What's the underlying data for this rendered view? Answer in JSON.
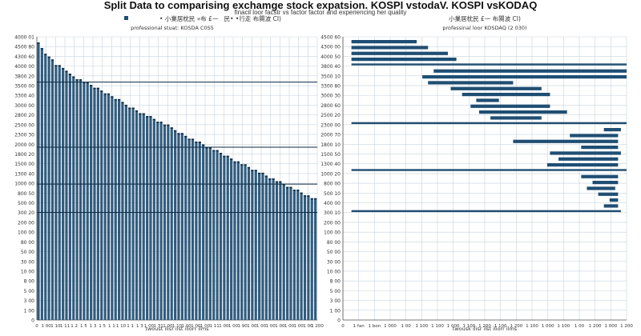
{
  "title": "Split Data to comparising exchamge stock expatsion. KOSPI vstodaV. KOSPI vsKODAQ",
  "subtitle": "finacil loor facstr vs factor factor and experiencing her quality",
  "chart_data": [
    {
      "type": "bar",
      "panel": "left",
      "legend_label": "• 小業居枕民 »布 £一   民• •行走 布闋波 CI)",
      "caption": "professional stuat: KOSDA C0S5",
      "xlabel": "twoust ilisr ilst iliorr ilms",
      "ylabel": "",
      "x_ticks": [
        "0",
        "1 00",
        "1 10",
        "1 11",
        "1 2",
        "1 5",
        "1 3",
        "1 5",
        "1 1",
        "1 10",
        "1 1",
        "1 3",
        "1 00",
        "1 31",
        "1 00",
        "1 10",
        "1 00",
        "1 00",
        "1 00",
        "1 11",
        "1 00",
        "1 00",
        "1 90",
        "1 00",
        "1 00",
        "1 00",
        "1 00",
        "1 00",
        "1 00",
        "1 00",
        "1 200"
      ],
      "y_ticks": [
        "4000 01",
        "4500 80",
        "4300 60",
        "4000 00",
        "3800 20",
        "3500 00",
        "3300 40",
        "3000 00",
        "2800 20",
        "2500 00",
        "2300 30",
        "2000 00",
        "1800 20",
        "1500 00",
        "1300 40",
        "1000 00",
        "800 50",
        "500 00",
        "300 20",
        "200 00",
        "100 00",
        "80 00",
        "50 00",
        "30 00",
        "10 00",
        "8 00",
        "5 00",
        "3 00",
        "1 00",
        "0"
      ],
      "ylim": [
        0,
        100
      ],
      "reference_lines": [
        84,
        61,
        48,
        38
      ],
      "values": [
        98,
        96,
        94,
        93,
        92,
        90,
        90,
        89,
        88,
        87,
        86,
        85,
        85,
        84,
        84,
        83,
        82,
        82,
        81,
        80,
        80,
        79,
        78,
        78,
        77,
        76,
        75,
        75,
        74,
        73,
        73,
        72,
        72,
        71,
        70,
        70,
        69,
        69,
        68,
        67,
        66,
        66,
        65,
        64,
        64,
        63,
        63,
        62,
        61,
        61,
        60,
        60,
        59,
        58,
        58,
        57,
        56,
        56,
        55,
        55,
        54,
        53,
        53,
        52,
        52,
        51,
        50,
        50,
        49,
        49,
        48,
        47,
        47,
        46,
        46,
        45,
        44,
        44,
        43,
        43
      ]
    },
    {
      "type": "bar",
      "orientation": "horizontal",
      "panel": "right",
      "legend_label": "小業居枕民 £一 布闋波 CI)",
      "caption": "professinal loor KOSDAQ (2 030)",
      "xlabel": "twousk ilisr ilst iliorr ilms",
      "ylabel": "",
      "x_ticks": [
        "0",
        "1 fan",
        "1 bon",
        "1 000",
        "1 00",
        "1 100",
        "1 100",
        "1 000",
        "1 100",
        "1 200",
        "1 100",
        "1 200",
        "1 100",
        "1 000",
        "1 100",
        "1 00",
        "1 200",
        "1 000",
        "1 200"
      ],
      "y_ticks": [
        "4500 60",
        "4300 00",
        "4000 50",
        "3800 40",
        "3500 10",
        "3300 80",
        "3000 30",
        "2800 60",
        "2500 20",
        "2300 00",
        "2000 70",
        "1800 10",
        "1500 50",
        "1300 40",
        "1000 20",
        "800 00",
        "500 10",
        "400 00",
        "300 10",
        "200 00",
        "100 00",
        "80 00",
        "50 00",
        "30 00",
        "10 00",
        "8 00",
        "5 00",
        "3 00",
        "1 00",
        "0"
      ],
      "bars": [
        {
          "start": 3,
          "end": 26
        },
        {
          "start": 3,
          "end": 30
        },
        {
          "start": 3,
          "end": 37
        },
        {
          "start": 3,
          "end": 40
        },
        {
          "start": 3,
          "end": 100
        },
        {
          "start": 32,
          "end": 100
        },
        {
          "start": 28,
          "end": 100
        },
        {
          "start": 30,
          "end": 60
        },
        {
          "start": 38,
          "end": 70
        },
        {
          "start": 42,
          "end": 73
        },
        {
          "start": 47,
          "end": 55
        },
        {
          "start": 45,
          "end": 73
        },
        {
          "start": 48,
          "end": 79
        },
        {
          "start": 52,
          "end": 70
        },
        {
          "start": 3,
          "end": 100
        },
        {
          "start": 92,
          "end": 98
        },
        {
          "start": 80,
          "end": 97
        },
        {
          "start": 60,
          "end": 97
        },
        {
          "start": 84,
          "end": 97
        },
        {
          "start": 73,
          "end": 98
        },
        {
          "start": 76,
          "end": 97
        },
        {
          "start": 72,
          "end": 97
        },
        {
          "start": 3,
          "end": 100
        },
        {
          "start": 84,
          "end": 97
        },
        {
          "start": 88,
          "end": 97
        },
        {
          "start": 86,
          "end": 96
        },
        {
          "start": 90,
          "end": 97
        },
        {
          "start": 94,
          "end": 97
        },
        {
          "start": 92,
          "end": 97
        },
        {
          "start": 3,
          "end": 98
        }
      ],
      "xlim": [
        0,
        100
      ]
    }
  ]
}
